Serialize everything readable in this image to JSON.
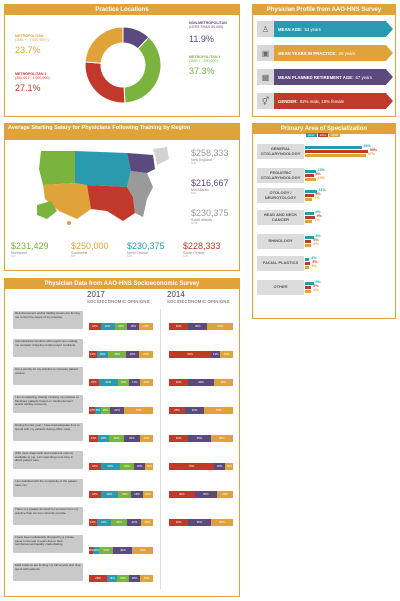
{
  "colors": {
    "gold": "#e0a33a",
    "purple": "#5b4a7d",
    "green": "#7ab43f",
    "red": "#c0392b",
    "teal": "#2a9ab0",
    "orange": "#e0a33a",
    "gray": "#b3b3b3"
  },
  "practice_locations": {
    "title": "Practice Locations",
    "items": [
      {
        "label": "NON-METROPOLITAN",
        "sub": "(LESS THAN 50,000)",
        "pct": "11.9%",
        "value": 11.9,
        "color": "#5b4a7d"
      },
      {
        "label": "METROPOLITAN 1",
        "sub": "(1MIL+ - 250,000)",
        "pct": "37.3%",
        "value": 37.3,
        "color": "#7ab43f"
      },
      {
        "label": "METROPOLITAN 2",
        "sub": "(250,001 - 1,000,000)",
        "pct": "27.1%",
        "value": 27.1,
        "color": "#c0392b"
      },
      {
        "label": "METROPOLITAN",
        "sub": "(1MIL+ / 1,000,000+)",
        "pct": "23.7%",
        "value": 23.7,
        "color": "#e0a33a"
      }
    ]
  },
  "profile": {
    "title": "Physician Profile from AAO-HNS Survey",
    "rows": [
      {
        "label": "MEAN AGE:",
        "value": "53 years",
        "color": "#2a9ab0",
        "icon": "person-icon",
        "glyph": "♙"
      },
      {
        "label": "MEAN YEARS IN PRACTICE:",
        "value": "20 years",
        "color": "#e0a33a",
        "icon": "briefcase-icon",
        "glyph": "▣"
      },
      {
        "label": "MEAN PLANNED RETIREMENT AGE:",
        "value": "67 years",
        "color": "#5b4a7d",
        "icon": "calendar-icon",
        "glyph": "▦"
      },
      {
        "label": "GENDER:",
        "value": "82% male, 18% female",
        "color": "#c0392b",
        "icon": "gender-icon",
        "glyph": "⚥"
      }
    ]
  },
  "salary": {
    "title": "Average Starting Salary for Physicians Following Training by Region",
    "map_note": "",
    "regions": [
      {
        "value": "$258,333",
        "region": "New England",
        "n": "N=6"
      },
      {
        "value": "$216,667",
        "region": "Mid Atlantic",
        "n": "N=6"
      },
      {
        "value": "$230,375",
        "region": "South Atlantic",
        "n": "N=16"
      },
      {
        "value": "$231,429",
        "region": "Northwest",
        "n": "N=7"
      },
      {
        "value": "$250,000",
        "region": "Southwest",
        "n": "N=7"
      },
      {
        "value": "$230,375",
        "region": "North Central",
        "n": "N=8"
      },
      {
        "value": "$228,333",
        "region": "South Central",
        "n": "N=6"
      }
    ]
  },
  "specialization": {
    "title": "Primary Area of Specialization",
    "legend": [
      {
        "label": "2017",
        "color": "#2a9ab0"
      },
      {
        "label": "2014",
        "color": "#c0392b"
      },
      {
        "label": "2008",
        "color": "#e0a33a"
      }
    ],
    "rows": [
      {
        "name": "GENERAL OTOLARYNGOLOGY",
        "v2017": "53%",
        "v2014": "59%",
        "v2008": "57%"
      },
      {
        "name": "PEDIATRIC OTOLARYNGOLOGY",
        "v2017": "10%",
        "v2014": "8%",
        "v2008": "10%"
      },
      {
        "name": "OTOLOGY / NEUROTOLOGY",
        "v2017": "11%",
        "v2014": "8%",
        "v2008": "7%"
      },
      {
        "name": "HEAD AND NECK CANCER",
        "v2017": "8%",
        "v2014": "9%",
        "v2008": "7%"
      },
      {
        "name": "RHINOLOGY",
        "v2017": "8%",
        "v2014": "6%",
        "v2008": "6%"
      },
      {
        "name": "FACIAL PLASTICS",
        "v2017": "4%",
        "v2014": "5%",
        "v2008": "4%"
      },
      {
        "name": "OTHER",
        "v2017": "8%",
        "v2014": "6%",
        "v2008": "6%"
      }
    ]
  },
  "socioeconomic": {
    "title": "Physician Data from AAO-HNS Socioeconomic Survey",
    "year_a": "2017",
    "year_b": "2014",
    "subtitle": "SOCIOECONOMIC OPINIONS",
    "questions": [
      {
        "text": "Reimbursement and/or liability issues are forcing me to limit the scope of my practice.",
        "a": [
          18,
          22,
          20,
          18,
          22
        ],
        "b": [
          30,
          30,
          40
        ]
      },
      {
        "text": "Administrative burdens with payers are making me consider dropping certain payer contracts.",
        "a": [
          12,
          18,
          28,
          20,
          22
        ],
        "b": [
          66,
          14,
          20
        ]
      },
      {
        "text": "It is a priority for my practice to increase patient volume.",
        "a": [
          15,
          30,
          18,
          17,
          20
        ],
        "b": [
          30,
          40,
          30
        ]
      },
      {
        "text": "I am considering closing / limiting my practice to Medicare patients based on reimbursement and/or liability concerns.",
        "a": [
          10,
          8,
          15,
          22,
          45
        ],
        "b": [
          25,
          30,
          45
        ]
      },
      {
        "text": "During the last year, I have had adequate time to spend with my patients during office visits.",
        "a": [
          14,
          18,
          22,
          26,
          20
        ],
        "b": [
          30,
          35,
          35
        ]
      },
      {
        "text": "With more diagnostic and treatment options available to me, I am spending more time in direct patient care.",
        "a": [
          18,
          30,
          22,
          18,
          12
        ],
        "b": [
          70,
          18,
          12
        ]
      },
      {
        "text": "I am satisfied with the complexity of the patient case mix.",
        "a": [
          18,
          28,
          20,
          18,
          16
        ],
        "b": [
          40,
          35,
          25
        ]
      },
      {
        "text": "There is a greater demand for services from my practice than we can currently provide.",
        "a": [
          12,
          22,
          26,
          22,
          18
        ],
        "b": [
          30,
          35,
          35
        ]
      },
      {
        "text": "I have been unilaterally dropped by a private payer in the last 3 years due to their reimbursement/quality credentialing.",
        "a": [
          6,
          10,
          22,
          30,
          32
        ],
        "b": []
      },
      {
        "text": "EHR burdens are limiting my full service and time spent with patients.",
        "a": [
          28,
          16,
          18,
          18,
          20
        ],
        "b": []
      }
    ]
  },
  "chart_data": [
    {
      "type": "pie",
      "title": "Practice Locations",
      "categories": [
        "Non-Metropolitan",
        "Metropolitan 1",
        "Metropolitan 2",
        "Metropolitan"
      ],
      "values": [
        11.9,
        37.3,
        27.1,
        23.7
      ]
    },
    {
      "type": "bar",
      "title": "Primary Area of Specialization",
      "categories": [
        "General Otolaryngology",
        "Pediatric Otolaryngology",
        "Otology / Neurotology",
        "Head and Neck Cancer",
        "Rhinology",
        "Facial Plastics",
        "Other"
      ],
      "series": [
        {
          "name": "2017",
          "values": [
            53,
            10,
            11,
            8,
            8,
            4,
            8
          ]
        },
        {
          "name": "2014",
          "values": [
            59,
            8,
            8,
            9,
            6,
            5,
            6
          ]
        },
        {
          "name": "2008",
          "values": [
            57,
            10,
            7,
            7,
            6,
            4,
            6
          ]
        }
      ]
    }
  ]
}
